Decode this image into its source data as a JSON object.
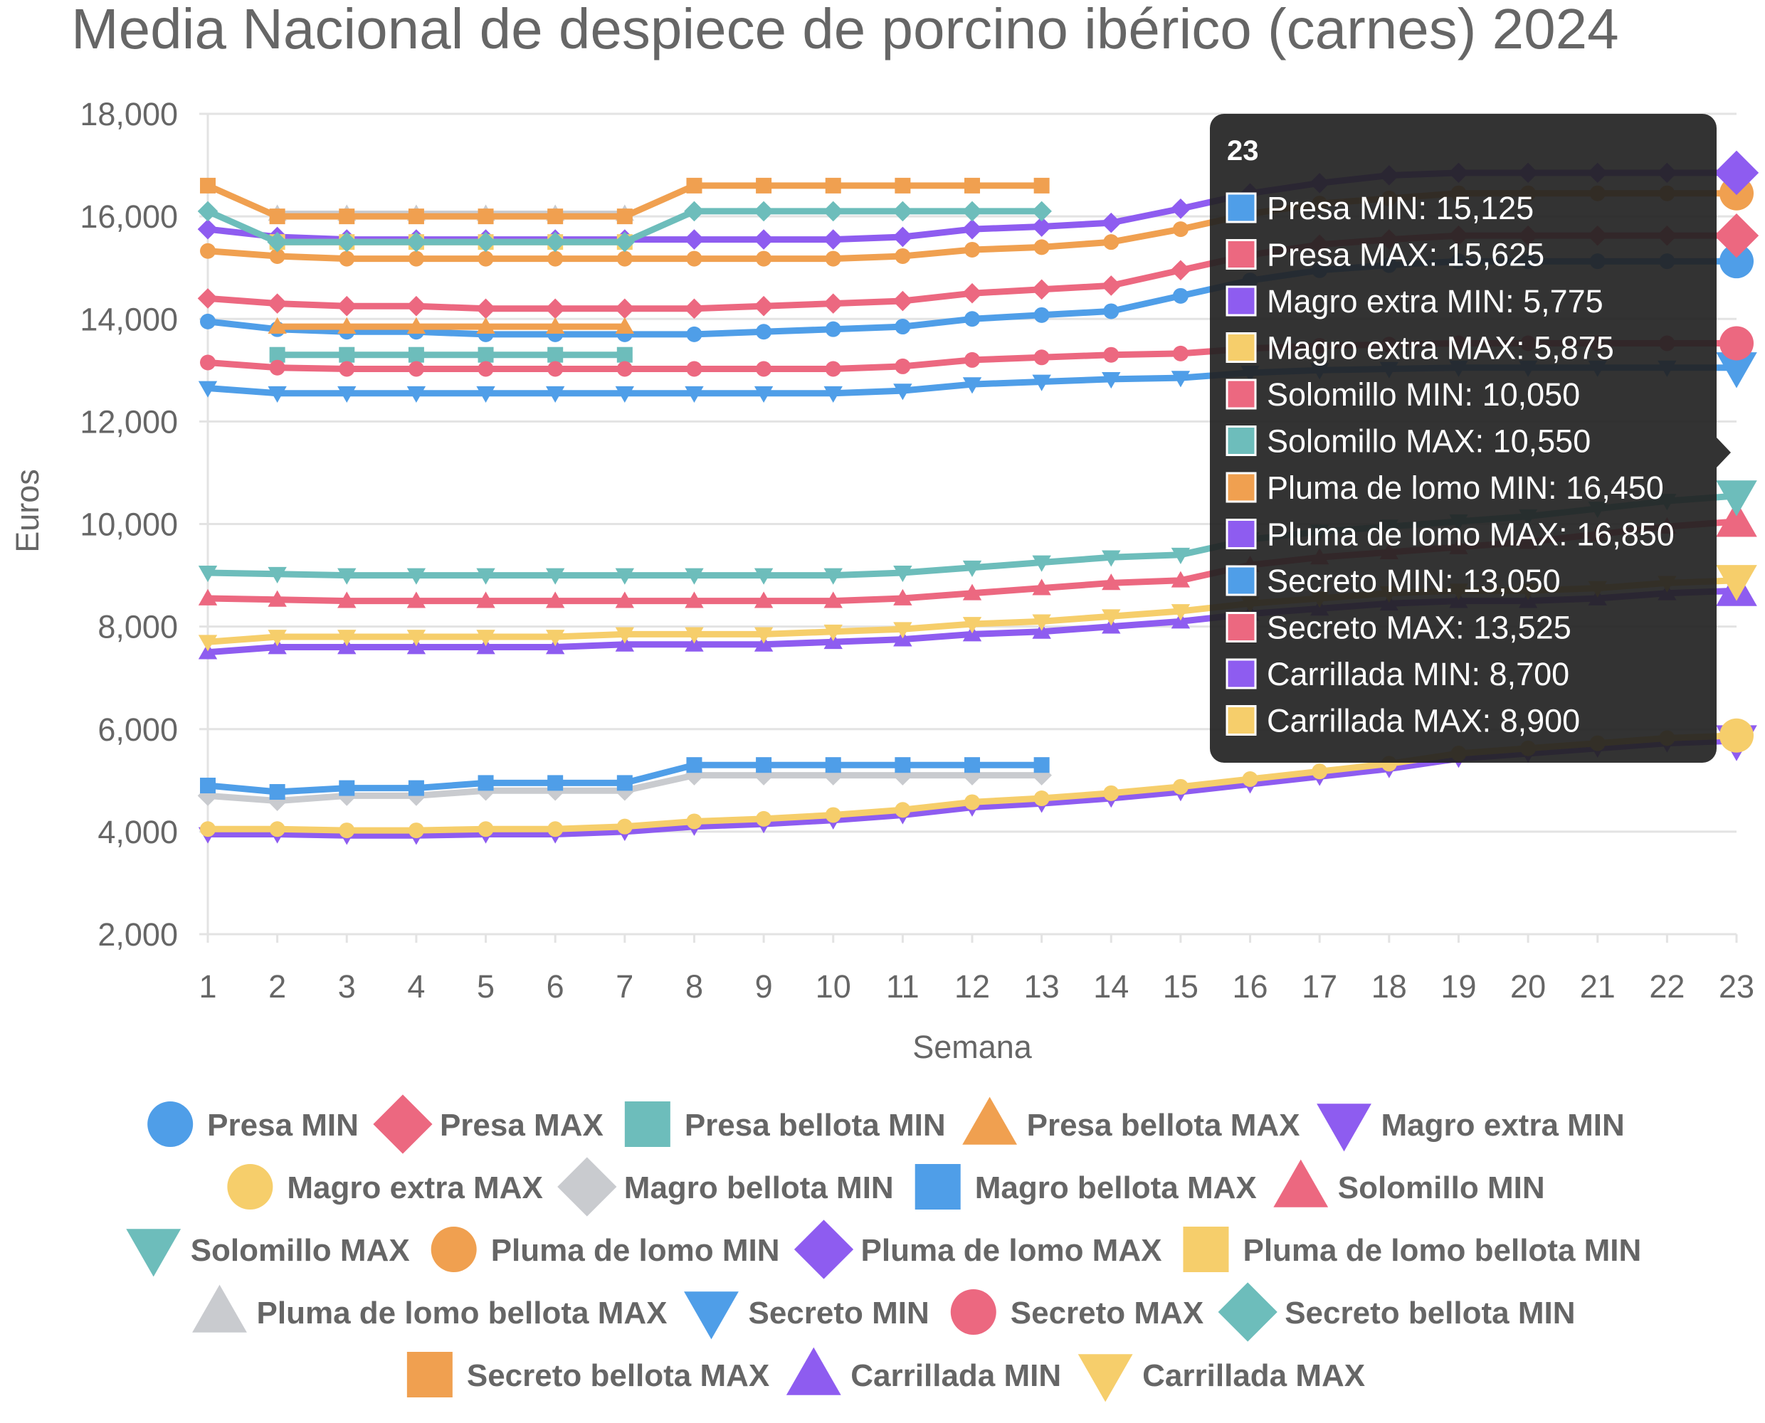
{
  "chart_data": {
    "type": "line",
    "title": "Media Nacional de despiece de porcino ibérico (carnes) 2024",
    "xlabel": "Semana",
    "ylabel": "Euros",
    "ylim": [
      2000,
      18000
    ],
    "yticks": [
      2000,
      4000,
      6000,
      8000,
      10000,
      12000,
      14000,
      16000,
      18000
    ],
    "ytick_labels": [
      "2,000",
      "4,000",
      "6,000",
      "8,000",
      "10,000",
      "12,000",
      "14,000",
      "16,000",
      "18,000"
    ],
    "categories": [
      "1",
      "2",
      "3",
      "4",
      "5",
      "6",
      "7",
      "8",
      "9",
      "10",
      "11",
      "12",
      "13",
      "14",
      "15",
      "16",
      "17",
      "18",
      "19",
      "20",
      "21",
      "22",
      "23"
    ],
    "grid": true,
    "legend_position": "bottom",
    "series": [
      {
        "name": "Presa MIN",
        "color": "#4f9ee8",
        "marker": "circle",
        "values": [
          13950,
          13800,
          13750,
          13750,
          13700,
          13700,
          13700,
          13700,
          13750,
          13800,
          13850,
          14000,
          14075,
          14150,
          14450,
          14750,
          14950,
          15050,
          15125,
          15125,
          15125,
          15125,
          15125
        ]
      },
      {
        "name": "Presa MAX",
        "color": "#ec6880",
        "marker": "diamond",
        "values": [
          14400,
          14300,
          14250,
          14250,
          14200,
          14200,
          14200,
          14200,
          14250,
          14300,
          14350,
          14500,
          14575,
          14650,
          14950,
          15250,
          15450,
          15550,
          15625,
          15625,
          15625,
          15625,
          15625
        ]
      },
      {
        "name": "Presa bellota MIN",
        "color": "#6dbdbb",
        "marker": "square",
        "values": [
          null,
          13300,
          13300,
          13300,
          13300,
          13300,
          13300,
          null,
          null,
          null,
          null,
          null,
          null,
          null,
          null,
          null,
          null,
          null,
          null,
          null,
          null,
          null,
          null
        ]
      },
      {
        "name": "Presa bellota MAX",
        "color": "#f0a050",
        "marker": "triangle",
        "values": [
          null,
          13850,
          13850,
          13850,
          13850,
          13850,
          13850,
          null,
          null,
          null,
          null,
          null,
          null,
          null,
          null,
          null,
          null,
          null,
          null,
          null,
          null,
          null,
          null
        ]
      },
      {
        "name": "Magro extra MIN",
        "color": "#8e5cf0",
        "marker": "triangleDown",
        "values": [
          3950,
          3950,
          3925,
          3925,
          3950,
          3950,
          4000,
          4100,
          4150,
          4225,
          4325,
          4475,
          4550,
          4650,
          4775,
          4925,
          5075,
          5225,
          5425,
          5525,
          5625,
          5725,
          5775
        ]
      },
      {
        "name": "Magro extra MAX",
        "color": "#f6ce6b",
        "marker": "circle",
        "values": [
          4050,
          4050,
          4025,
          4025,
          4050,
          4050,
          4100,
          4200,
          4250,
          4325,
          4425,
          4575,
          4650,
          4750,
          4875,
          5025,
          5175,
          5325,
          5525,
          5625,
          5725,
          5825,
          5875
        ]
      },
      {
        "name": "Magro bellota MIN",
        "color": "#c9cbcf",
        "marker": "diamond",
        "values": [
          4700,
          4600,
          4700,
          4700,
          4800,
          4800,
          4800,
          5100,
          5100,
          5100,
          5100,
          5100,
          5100,
          null,
          null,
          null,
          null,
          null,
          null,
          null,
          null,
          null,
          null
        ]
      },
      {
        "name": "Magro bellota MAX",
        "color": "#4f9ee8",
        "marker": "square",
        "values": [
          4900,
          4775,
          4850,
          4850,
          4950,
          4950,
          4950,
          5300,
          5300,
          5300,
          5300,
          5300,
          5300,
          null,
          null,
          null,
          null,
          null,
          null,
          null,
          null,
          null,
          null
        ]
      },
      {
        "name": "Solomillo MIN",
        "color": "#ec6880",
        "marker": "triangle",
        "values": [
          8550,
          8525,
          8500,
          8500,
          8500,
          8500,
          8500,
          8500,
          8500,
          8500,
          8550,
          8650,
          8750,
          8850,
          8900,
          9200,
          9350,
          9450,
          9550,
          9650,
          9800,
          9950,
          10050
        ]
      },
      {
        "name": "Solomillo MAX",
        "color": "#6dbdbb",
        "marker": "triangleDown",
        "values": [
          9050,
          9025,
          9000,
          9000,
          9000,
          9000,
          9000,
          9000,
          9000,
          9000,
          9050,
          9150,
          9250,
          9350,
          9400,
          9700,
          9850,
          9950,
          10050,
          10150,
          10300,
          10450,
          10550
        ]
      },
      {
        "name": "Pluma de lomo MIN",
        "color": "#f0a050",
        "marker": "circle",
        "values": [
          15325,
          15225,
          15175,
          15175,
          15175,
          15175,
          15175,
          15175,
          15175,
          15175,
          15225,
          15350,
          15400,
          15500,
          15750,
          16050,
          16250,
          16350,
          16450,
          16450,
          16450,
          16450,
          16450
        ]
      },
      {
        "name": "Pluma de lomo MAX",
        "color": "#8e5cf0",
        "marker": "diamond",
        "values": [
          15750,
          15600,
          15550,
          15550,
          15550,
          15550,
          15550,
          15550,
          15550,
          15550,
          15600,
          15750,
          15800,
          15875,
          16150,
          16450,
          16650,
          16800,
          16850,
          16850,
          16850,
          16850,
          16850
        ]
      },
      {
        "name": "Pluma de lomo bellota MIN",
        "color": "#f6ce6b",
        "marker": "square",
        "values": [
          null,
          15500,
          15500,
          15500,
          15500,
          15500,
          15500,
          null,
          null,
          null,
          null,
          null,
          null,
          null,
          null,
          null,
          null,
          null,
          null,
          null,
          null,
          null,
          null
        ]
      },
      {
        "name": "Pluma de lomo bellota MAX",
        "color": "#c9cbcf",
        "marker": "triangle",
        "values": [
          null,
          16050,
          16050,
          16050,
          16050,
          16050,
          16050,
          null,
          null,
          null,
          null,
          null,
          null,
          null,
          null,
          null,
          null,
          null,
          null,
          null,
          null,
          null,
          null
        ]
      },
      {
        "name": "Secreto MIN",
        "color": "#4f9ee8",
        "marker": "triangleDown",
        "values": [
          12650,
          12550,
          12550,
          12550,
          12550,
          12550,
          12550,
          12550,
          12550,
          12550,
          12600,
          12725,
          12775,
          12825,
          12850,
          12950,
          13000,
          13025,
          13050,
          13050,
          13050,
          13050,
          13050
        ]
      },
      {
        "name": "Secreto MAX",
        "color": "#ec6880",
        "marker": "circle",
        "values": [
          13150,
          13050,
          13025,
          13025,
          13025,
          13025,
          13025,
          13025,
          13025,
          13025,
          13075,
          13200,
          13250,
          13300,
          13325,
          13425,
          13475,
          13500,
          13525,
          13525,
          13525,
          13525,
          13525
        ]
      },
      {
        "name": "Secreto bellota MIN",
        "color": "#6dbdbb",
        "marker": "diamond",
        "values": [
          16100,
          15500,
          15500,
          15500,
          15500,
          15500,
          15500,
          16100,
          16100,
          16100,
          16100,
          16100,
          16100,
          null,
          null,
          null,
          null,
          null,
          null,
          null,
          null,
          null,
          null
        ]
      },
      {
        "name": "Secreto bellota MAX",
        "color": "#f0a050",
        "marker": "square",
        "values": [
          16600,
          16000,
          16000,
          16000,
          16000,
          16000,
          16000,
          16600,
          16600,
          16600,
          16600,
          16600,
          16600,
          null,
          null,
          null,
          null,
          null,
          null,
          null,
          null,
          null,
          null
        ]
      },
      {
        "name": "Carrillada MIN",
        "color": "#8e5cf0",
        "marker": "triangle",
        "values": [
          7500,
          7600,
          7600,
          7600,
          7600,
          7600,
          7650,
          7650,
          7650,
          7700,
          7750,
          7850,
          7900,
          8000,
          8100,
          8250,
          8350,
          8450,
          8500,
          8500,
          8550,
          8650,
          8700
        ]
      },
      {
        "name": "Carrillada MAX",
        "color": "#f6ce6b",
        "marker": "triangleDown",
        "values": [
          7700,
          7800,
          7800,
          7800,
          7800,
          7800,
          7850,
          7850,
          7850,
          7900,
          7950,
          8050,
          8100,
          8200,
          8300,
          8450,
          8550,
          8650,
          8700,
          8700,
          8750,
          8850,
          8900
        ]
      }
    ],
    "tooltip": {
      "title": "23",
      "items": [
        {
          "label": "Presa MIN: 15,125",
          "color": "#4f9ee8"
        },
        {
          "label": "Presa MAX: 15,625",
          "color": "#ec6880"
        },
        {
          "label": "Magro extra MIN: 5,775",
          "color": "#8e5cf0"
        },
        {
          "label": "Magro extra MAX: 5,875",
          "color": "#f6ce6b"
        },
        {
          "label": "Solomillo MIN: 10,050",
          "color": "#ec6880"
        },
        {
          "label": "Solomillo MAX: 10,550",
          "color": "#6dbdbb"
        },
        {
          "label": "Pluma de lomo MIN: 16,450",
          "color": "#f0a050"
        },
        {
          "label": "Pluma de lomo MAX: 16,850",
          "color": "#8e5cf0"
        },
        {
          "label": "Secreto MIN: 13,050",
          "color": "#4f9ee8"
        },
        {
          "label": "Secreto MAX: 13,525",
          "color": "#ec6880"
        },
        {
          "label": "Carrillada MIN: 8,700",
          "color": "#8e5cf0"
        },
        {
          "label": "Carrillada MAX: 8,900",
          "color": "#f6ce6b"
        }
      ]
    }
  }
}
